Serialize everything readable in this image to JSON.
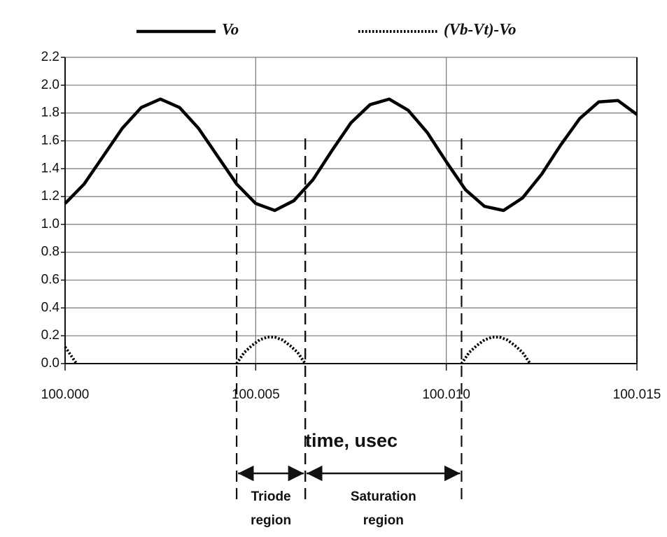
{
  "chart_data": {
    "type": "line",
    "xlabel": "time, usec",
    "xlim": [
      100.0,
      100.015
    ],
    "ylim": [
      0.0,
      2.2
    ],
    "xticks": [
      {
        "value": 100.0,
        "label": "100.000"
      },
      {
        "value": 100.005,
        "label": "100.005"
      },
      {
        "value": 100.01,
        "label": "100.010"
      },
      {
        "value": 100.015,
        "label": "100.015"
      }
    ],
    "yticks": [
      {
        "value": 0.0,
        "label": "0.0"
      },
      {
        "value": 0.2,
        "label": "0.2"
      },
      {
        "value": 0.4,
        "label": "0.4"
      },
      {
        "value": 0.6,
        "label": "0.6"
      },
      {
        "value": 0.8,
        "label": "0.8"
      },
      {
        "value": 1.0,
        "label": "1.0"
      },
      {
        "value": 1.2,
        "label": "1.2"
      },
      {
        "value": 1.4,
        "label": "1.4"
      },
      {
        "value": 1.6,
        "label": "1.6"
      },
      {
        "value": 1.8,
        "label": "1.8"
      },
      {
        "value": 2.0,
        "label": "2.0"
      },
      {
        "value": 2.2,
        "label": "2.2"
      }
    ],
    "grid": true,
    "legend": "top",
    "series": [
      {
        "name": "Vo",
        "color": "#000000",
        "style": "solid",
        "x": [
          100.0,
          100.0005,
          100.001,
          100.0015,
          100.002,
          100.0025,
          100.003,
          100.0035,
          100.004,
          100.0045,
          100.005,
          100.0055,
          100.006,
          100.0065,
          100.007,
          100.0075,
          100.008,
          100.0085,
          100.009,
          100.0095,
          100.01,
          100.0105,
          100.011,
          100.0115,
          100.012,
          100.0125,
          100.013,
          100.0135,
          100.014,
          100.0145,
          100.015
        ],
        "values": [
          1.15,
          1.29,
          1.49,
          1.69,
          1.84,
          1.9,
          1.84,
          1.69,
          1.49,
          1.29,
          1.15,
          1.1,
          1.17,
          1.32,
          1.53,
          1.73,
          1.86,
          1.9,
          1.82,
          1.66,
          1.45,
          1.25,
          1.13,
          1.1,
          1.19,
          1.36,
          1.57,
          1.76,
          1.88,
          1.89,
          1.79
        ]
      },
      {
        "name": "(Vb-Vt)-Vo",
        "color": "#000000",
        "style": "dotted",
        "x": [
          100.0,
          100.0001,
          100.0002,
          100.0003,
          100.003,
          100.0045,
          100.0047,
          100.0049,
          100.0051,
          100.0053,
          100.0055,
          100.0057,
          100.0059,
          100.0061,
          100.0063,
          100.008,
          100.0104,
          100.0106,
          100.0108,
          100.011,
          100.0112,
          100.0114,
          100.0116,
          100.0118,
          100.012,
          100.0122
        ],
        "values": [
          0.12,
          0.08,
          0.04,
          0.0,
          null,
          0.0,
          0.08,
          0.13,
          0.17,
          0.19,
          0.19,
          0.17,
          0.13,
          0.08,
          0.0,
          null,
          0.0,
          0.08,
          0.13,
          0.17,
          0.19,
          0.19,
          0.17,
          0.13,
          0.08,
          0.0
        ]
      }
    ],
    "regions": [
      {
        "lines": [
          "Triode",
          "region"
        ],
        "from": 100.0045,
        "to": 100.0063
      },
      {
        "lines": [
          "Saturation",
          "region"
        ],
        "from": 100.0063,
        "to": 100.0104
      }
    ]
  }
}
